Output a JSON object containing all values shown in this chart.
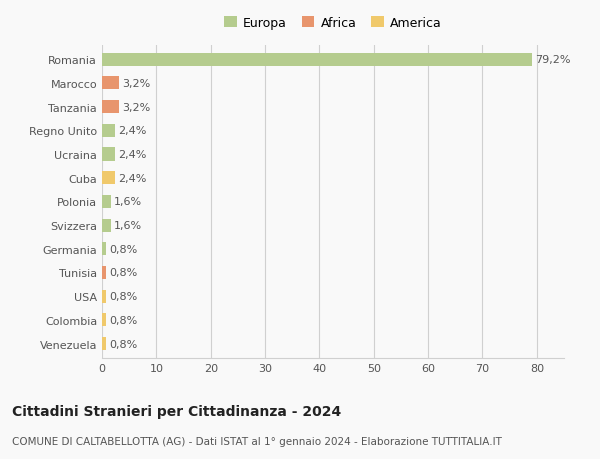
{
  "countries": [
    "Romania",
    "Marocco",
    "Tanzania",
    "Regno Unito",
    "Ucraina",
    "Cuba",
    "Polonia",
    "Svizzera",
    "Germania",
    "Tunisia",
    "USA",
    "Colombia",
    "Venezuela"
  ],
  "values": [
    79.2,
    3.2,
    3.2,
    2.4,
    2.4,
    2.4,
    1.6,
    1.6,
    0.8,
    0.8,
    0.8,
    0.8,
    0.8
  ],
  "labels": [
    "79,2%",
    "3,2%",
    "3,2%",
    "2,4%",
    "2,4%",
    "2,4%",
    "1,6%",
    "1,6%",
    "0,8%",
    "0,8%",
    "0,8%",
    "0,8%",
    "0,8%"
  ],
  "continents": [
    "Europa",
    "Africa",
    "Africa",
    "Europa",
    "Europa",
    "America",
    "Europa",
    "Europa",
    "Europa",
    "Africa",
    "America",
    "America",
    "America"
  ],
  "colors": {
    "Europa": "#b5cc8e",
    "Africa": "#e8956d",
    "America": "#f0c96b"
  },
  "legend_labels": [
    "Europa",
    "Africa",
    "America"
  ],
  "legend_colors": [
    "#b5cc8e",
    "#e8956d",
    "#f0c96b"
  ],
  "title": "Cittadini Stranieri per Cittadinanza - 2024",
  "subtitle": "COMUNE DI CALTABELLOTTA (AG) - Dati ISTAT al 1° gennaio 2024 - Elaborazione TUTTITALIA.IT",
  "xlim": [
    0,
    85
  ],
  "xticks": [
    0,
    10,
    20,
    30,
    40,
    50,
    60,
    70,
    80
  ],
  "background_color": "#f9f9f9",
  "grid_color": "#d0d0d0",
  "bar_height": 0.55,
  "label_fontsize": 8,
  "tick_fontsize": 8,
  "title_fontsize": 10,
  "subtitle_fontsize": 7.5
}
